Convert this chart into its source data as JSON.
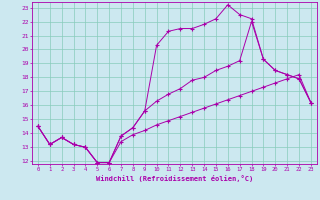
{
  "xlabel": "Windchill (Refroidissement éolien,°C)",
  "bg_color": "#cce8f0",
  "line_color": "#aa00aa",
  "grid_color": "#88ccbb",
  "xlim": [
    -0.5,
    23.5
  ],
  "ylim": [
    11.8,
    23.4
  ],
  "xticks": [
    0,
    1,
    2,
    3,
    4,
    5,
    6,
    7,
    8,
    9,
    10,
    11,
    12,
    13,
    14,
    15,
    16,
    17,
    18,
    19,
    20,
    21,
    22,
    23
  ],
  "yticks": [
    12,
    13,
    14,
    15,
    16,
    17,
    18,
    19,
    20,
    21,
    22,
    23
  ],
  "line1_x": [
    0,
    1,
    2,
    3,
    4,
    5,
    6,
    7,
    8,
    9,
    10,
    11,
    12,
    13,
    14,
    15,
    16,
    17,
    18,
    19,
    20,
    21,
    22,
    23
  ],
  "line1_y": [
    14.5,
    13.2,
    13.7,
    13.2,
    13.0,
    11.9,
    11.9,
    13.8,
    14.4,
    15.6,
    16.3,
    16.8,
    17.2,
    17.8,
    18.0,
    18.5,
    18.8,
    19.2,
    22.0,
    19.3,
    18.5,
    18.2,
    17.9,
    16.2
  ],
  "line2_x": [
    0,
    1,
    2,
    3,
    4,
    5,
    6,
    7,
    8,
    9,
    10,
    11,
    12,
    13,
    14,
    15,
    16,
    17,
    18,
    19,
    20,
    21,
    22,
    23
  ],
  "line2_y": [
    14.5,
    13.2,
    13.7,
    13.2,
    13.0,
    11.9,
    11.9,
    13.8,
    14.4,
    15.6,
    20.3,
    21.3,
    21.5,
    21.5,
    21.8,
    22.2,
    23.2,
    22.5,
    22.2,
    19.3,
    18.5,
    18.2,
    17.9,
    16.2
  ],
  "line3_x": [
    0,
    1,
    2,
    3,
    4,
    5,
    6,
    7,
    8,
    9,
    10,
    11,
    12,
    13,
    14,
    15,
    16,
    17,
    18,
    19,
    20,
    21,
    22,
    23
  ],
  "line3_y": [
    14.5,
    13.2,
    13.7,
    13.2,
    13.0,
    11.9,
    11.9,
    13.4,
    13.9,
    14.2,
    14.6,
    14.9,
    15.2,
    15.5,
    15.8,
    16.1,
    16.4,
    16.7,
    17.0,
    17.3,
    17.6,
    17.9,
    18.2,
    16.2
  ]
}
